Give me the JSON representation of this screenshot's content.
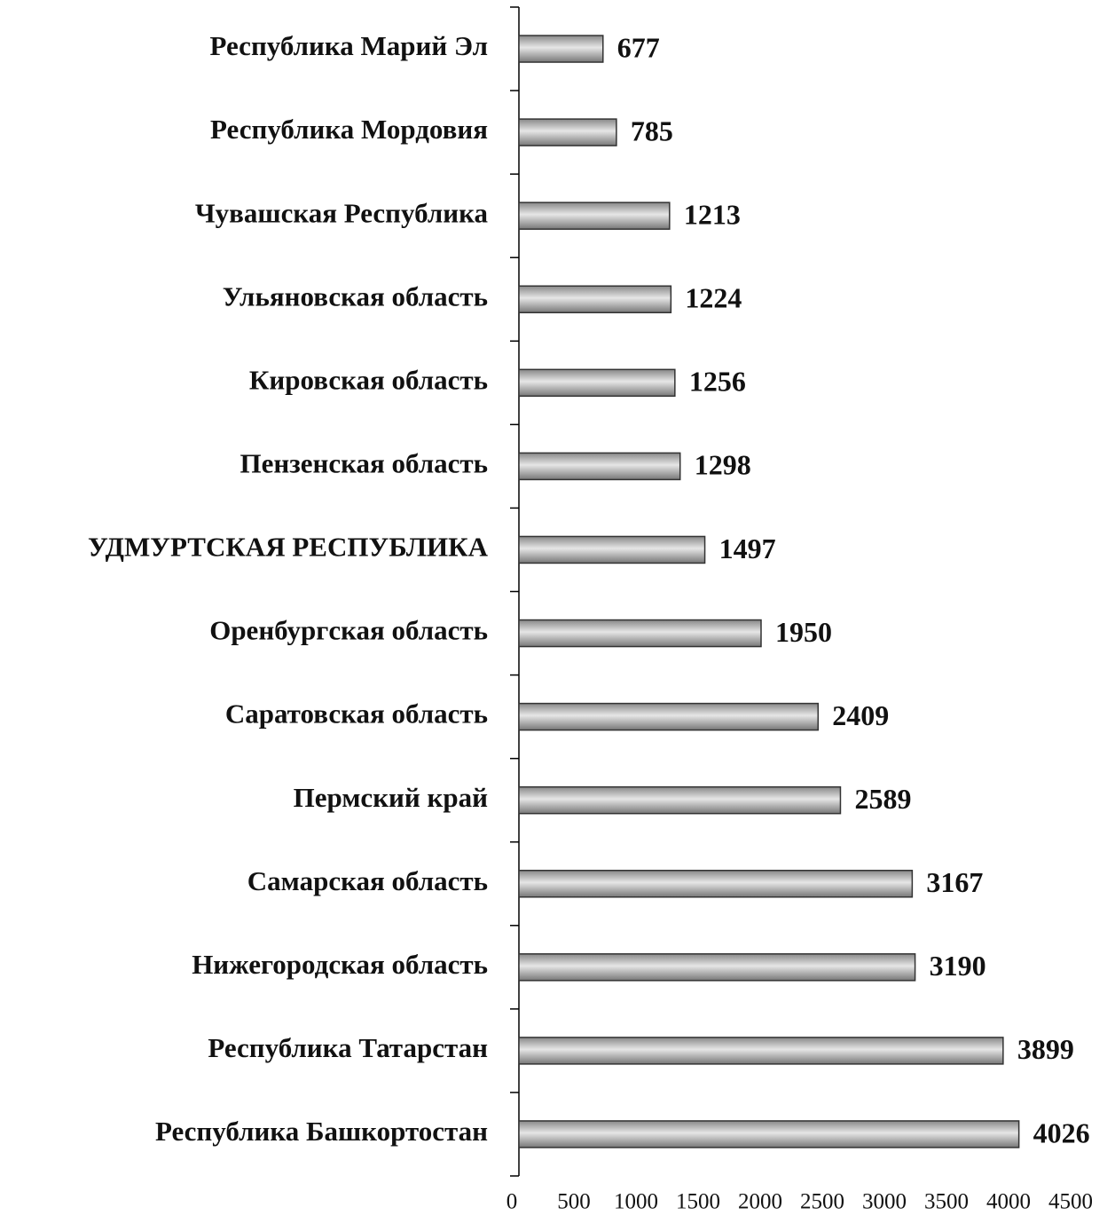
{
  "chart_data": {
    "type": "bar",
    "orientation": "horizontal",
    "categories": [
      "Республика Марий Эл",
      "Республика Мордовия",
      "Чувашская Республика",
      "Ульяновская область",
      "Кировская область",
      "Пензенская область",
      "УДМУРТСКАЯ РЕСПУБЛИКА",
      "Оренбургская область",
      "Саратовская область",
      "Пермский край",
      "Самарская область",
      "Нижегородская область",
      "Республика Татарстан",
      "Республика Башкортостан"
    ],
    "values": [
      677,
      785,
      1213,
      1224,
      1256,
      1298,
      1497,
      1950,
      2409,
      2589,
      3167,
      3190,
      3899,
      4026
    ],
    "color": "#a0a0a0",
    "xlim": [
      0,
      4500
    ],
    "xticks": [
      0,
      500,
      1000,
      1500,
      2000,
      2500,
      3000,
      3500,
      4000,
      4500
    ]
  }
}
